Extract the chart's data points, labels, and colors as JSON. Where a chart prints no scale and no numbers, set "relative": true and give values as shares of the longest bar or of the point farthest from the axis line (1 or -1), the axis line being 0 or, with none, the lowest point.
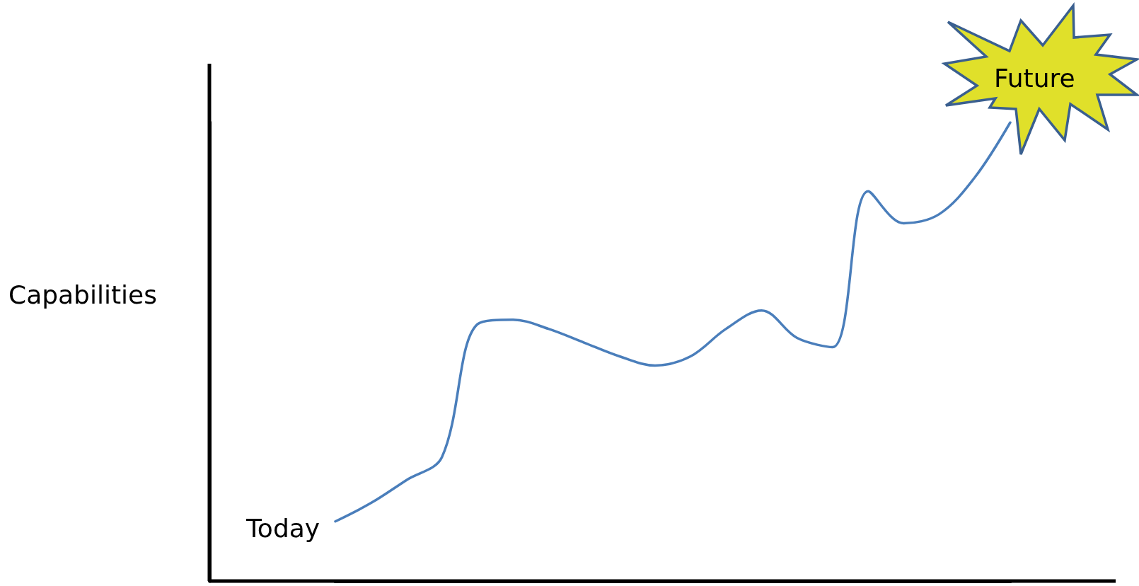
{
  "chart_data": {
    "type": "line",
    "relative": true,
    "annotations": [
      "Capabilities",
      "Today",
      "Future"
    ],
    "categories": [
      null,
      null,
      null,
      null,
      null,
      null,
      null,
      null,
      null,
      null,
      null,
      null,
      null,
      null,
      null,
      null,
      null,
      null,
      null,
      null
    ],
    "series": [
      {
        "color": "#4a7ebb",
        "values": [
          0.13,
          0.17,
          0.22,
          0.27,
          0.56,
          0.57,
          0.55,
          0.52,
          0.49,
          0.47,
          0.49,
          0.55,
          0.59,
          0.53,
          0.51,
          0.85,
          0.78,
          0.8,
          0.88,
          1
        ]
      }
    ],
    "marker": "none",
    "line_style": "solid"
  }
}
